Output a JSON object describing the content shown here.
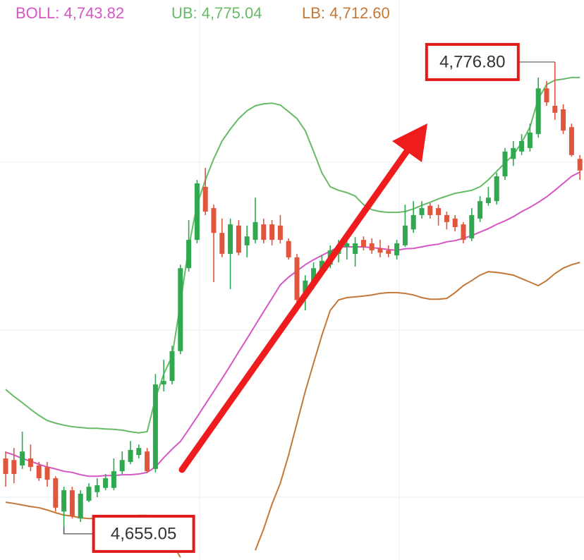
{
  "chart_data": {
    "type": "candlestick",
    "ylim": [
      4648.3,
      4792.8
    ],
    "categories": [
      null,
      null,
      null,
      null,
      null,
      null,
      null,
      null,
      null,
      null,
      null,
      null,
      null,
      null,
      null,
      null,
      null,
      null,
      null,
      null,
      null,
      null,
      null,
      null,
      null,
      null,
      null,
      null,
      null,
      null,
      null,
      null,
      null,
      null,
      null,
      null,
      null,
      null,
      null,
      null,
      null,
      null,
      null,
      null,
      null,
      null,
      null,
      null,
      null,
      null,
      null,
      null,
      null,
      null,
      null,
      null,
      null,
      null,
      null,
      null,
      null,
      null,
      null,
      null,
      null,
      null,
      null,
      null,
      null,
      null
    ],
    "up_color": "#2fa84f",
    "down_color": "#e0553c",
    "open": [
      4674.5,
      4674.1,
      4672.7,
      4674.5,
      4672.7,
      4672.3,
      4669.4,
      4660.8,
      4666.3,
      4659.0,
      4663.6,
      4665.8,
      4666.9,
      4666.9,
      4671.2,
      4673.6,
      4675.4,
      4676.3,
      4671.8,
      4693.6,
      4694.5,
      4702.2,
      4723.6,
      4730.9,
      4744.6,
      4739.1,
      4732.7,
      4727.3,
      4734.6,
      4729.5,
      4730.9,
      4734.9,
      4734.9,
      4734.6,
      4730.6,
      4726.4,
      4717.3,
      4720.0,
      4722.7,
      4724.5,
      4727.3,
      4729.1,
      4727.3,
      4730.9,
      4730.0,
      4728.7,
      4728.2,
      4726.9,
      4729.5,
      4733.6,
      4737.3,
      4739.7,
      4739.1,
      4737.3,
      4736.4,
      4734.9,
      4731.3,
      4736.4,
      4740.4,
      4740.9,
      4747.3,
      4751.8,
      4753.7,
      4754.6,
      4758.2,
      4770.0,
      4765.5,
      4764.6,
      4760.0,
      4751.8
    ],
    "high": [
      4676.3,
      4677.2,
      4681.4,
      4678.1,
      4673.6,
      4673.6,
      4669.9,
      4667.2,
      4667.2,
      4666.3,
      4668.1,
      4669.4,
      4670.5,
      4674.5,
      4676.3,
      4679.0,
      4678.1,
      4677.2,
      4696.3,
      4700.0,
      4703.6,
      4724.5,
      4736.0,
      4746.4,
      4749.5,
      4740.0,
      4736.4,
      4736.4,
      4736.0,
      4734.6,
      4741.8,
      4736.4,
      4736.0,
      4737.3,
      4731.3,
      4727.3,
      4721.8,
      4725.1,
      4726.9,
      4729.5,
      4730.9,
      4731.3,
      4731.6,
      4731.8,
      4731.3,
      4730.9,
      4729.5,
      4730.9,
      4740.0,
      4740.9,
      4740.9,
      4740.4,
      4740.0,
      4738.2,
      4737.3,
      4735.5,
      4739.1,
      4742.2,
      4744.6,
      4748.2,
      4754.6,
      4756.4,
      4758.2,
      4760.9,
      4772.8,
      4771.9,
      4776.8,
      4765.9,
      4760.9,
      4752.8
    ],
    "low": [
      4667.2,
      4668.1,
      4671.8,
      4671.2,
      4668.7,
      4667.2,
      4660.8,
      4655.05,
      4659.0,
      4658.1,
      4663.2,
      4664.5,
      4666.3,
      4666.3,
      4670.5,
      4673.0,
      4674.5,
      4670.9,
      4670.9,
      4691.8,
      4693.6,
      4701.4,
      4722.7,
      4730.0,
      4737.3,
      4720.0,
      4726.4,
      4718.2,
      4726.9,
      4726.4,
      4730.0,
      4730.0,
      4729.5,
      4730.0,
      4725.8,
      4714.5,
      4712.7,
      4718.2,
      4721.5,
      4723.6,
      4725.1,
      4725.8,
      4724.0,
      4728.2,
      4727.3,
      4726.4,
      4726.4,
      4725.8,
      4729.1,
      4732.7,
      4736.4,
      4736.4,
      4734.6,
      4733.6,
      4733.1,
      4730.0,
      4730.6,
      4735.5,
      4739.7,
      4740.0,
      4746.4,
      4750.0,
      4752.8,
      4753.7,
      4757.3,
      4765.5,
      4761.9,
      4758.2,
      4752.4,
      4746.4
    ],
    "close": [
      4670.5,
      4670.5,
      4676.3,
      4672.3,
      4669.4,
      4669.0,
      4661.8,
      4666.3,
      4659.6,
      4665.4,
      4667.2,
      4667.6,
      4669.4,
      4671.2,
      4674.1,
      4676.7,
      4677.2,
      4671.2,
      4693.6,
      4694.5,
      4702.2,
      4723.6,
      4730.9,
      4745.5,
      4738.2,
      4732.7,
      4727.3,
      4734.9,
      4727.6,
      4731.8,
      4735.5,
      4730.9,
      4730.9,
      4730.9,
      4726.4,
      4715.4,
      4720.4,
      4723.6,
      4725.5,
      4728.2,
      4729.5,
      4730.0,
      4730.0,
      4729.1,
      4728.2,
      4727.6,
      4727.3,
      4730.0,
      4734.6,
      4737.3,
      4739.1,
      4737.3,
      4737.3,
      4735.5,
      4734.2,
      4730.9,
      4737.3,
      4740.9,
      4741.8,
      4747.3,
      4753.7,
      4754.6,
      4756.4,
      4758.6,
      4770.0,
      4766.4,
      4763.7,
      4759.1,
      4752.8,
      4748.8
    ],
    "series": [
      {
        "name": "BOLL: 4,743.82",
        "color": "#d656c4",
        "values": [
          4676.1,
          4675.4,
          4674.5,
          4673.8,
          4673.0,
          4672.3,
          4671.8,
          4671.2,
          4670.9,
          4670.3,
          4669.9,
          4669.9,
          4670.1,
          4670.1,
          4670.3,
          4670.3,
          4670.5,
          4670.9,
          4672.3,
          4674.7,
          4676.9,
          4678.9,
          4682.0,
          4685.2,
          4688.5,
          4691.8,
          4695.1,
          4698.5,
          4702.0,
          4705.4,
          4708.9,
          4712.4,
          4715.8,
          4719.3,
          4721.3,
          4722.9,
          4724.5,
          4725.8,
          4726.9,
          4728.0,
          4729.1,
          4729.1,
          4729.1,
          4729.1,
          4728.9,
          4728.7,
          4728.4,
          4728.2,
          4728.6,
          4728.7,
          4729.1,
          4729.5,
          4729.8,
          4730.4,
          4730.7,
          4731.3,
          4732.0,
          4732.9,
          4733.8,
          4734.9,
          4735.8,
          4736.9,
          4738.2,
          4739.3,
          4740.6,
          4742.0,
          4743.7,
          4745.5,
          4747.3,
          4748.4
        ]
      },
      {
        "name": "UB: 4,775.04",
        "color": "#66bb66",
        "values": [
          4692.3,
          4690.5,
          4688.9,
          4687.2,
          4685.6,
          4684.3,
          4683.6,
          4683.1,
          4682.7,
          4682.5,
          4682.3,
          4682.3,
          4682.1,
          4682.0,
          4681.8,
          4681.4,
          4681.1,
          4681.4,
          4690.0,
          4696.3,
          4700.9,
          4714.5,
          4729.1,
          4740.0,
          4746.4,
          4751.8,
          4756.4,
          4759.5,
          4762.2,
          4764.2,
          4765.5,
          4766.0,
          4766.2,
          4765.7,
          4764.0,
          4762.2,
          4759.1,
          4753.7,
          4748.2,
          4744.6,
          4743.7,
          4743.1,
          4742.2,
          4740.0,
          4738.7,
          4738.2,
          4738.0,
          4738.0,
          4738.2,
          4738.9,
          4739.8,
          4740.6,
          4741.5,
          4742.2,
          4742.9,
          4743.3,
          4743.7,
          4744.6,
          4746.4,
          4748.6,
          4750.8,
          4752.8,
          4756.0,
          4760.0,
          4767.3,
          4771.0,
          4772.1,
          4772.4,
          4772.8,
          4772.8
        ]
      },
      {
        "name": "LB: 4,712.60",
        "color": "#c47838",
        "values": [
          4663.2,
          4662.9,
          4662.5,
          4662.1,
          4661.8,
          4661.2,
          4660.5,
          4659.9,
          4659.6,
          4659.2,
          4659.0,
          4659.0,
          4659.0,
          4659.0,
          4659.2,
          4659.4,
          4659.8,
          4659.8,
          4658.5,
          4656.3,
          4652.7,
          4649.0,
          null,
          null,
          null,
          null,
          null,
          null,
          null,
          null,
          4650.8,
          4656.3,
          4662.7,
          4668.1,
          4675.4,
          4683.6,
          4691.8,
          4699.1,
          4706.3,
          4712.7,
          4715.4,
          4716.0,
          4716.2,
          4716.4,
          4716.7,
          4717.1,
          4717.3,
          4717.3,
          4717.1,
          4716.7,
          4716.0,
          4715.6,
          4715.6,
          4715.8,
          4717.3,
          4719.1,
          4720.4,
          4721.8,
          4722.7,
          4722.5,
          4722.2,
          4721.8,
          4720.9,
          4720.0,
          4719.1,
          4720.4,
          4722.2,
          4723.6,
          4724.5,
          4725.1
        ]
      }
    ],
    "annotations": [
      {
        "value": 4776.8,
        "label": "4,776.80"
      },
      {
        "value": 4655.05,
        "label": "4,655.05"
      }
    ]
  }
}
